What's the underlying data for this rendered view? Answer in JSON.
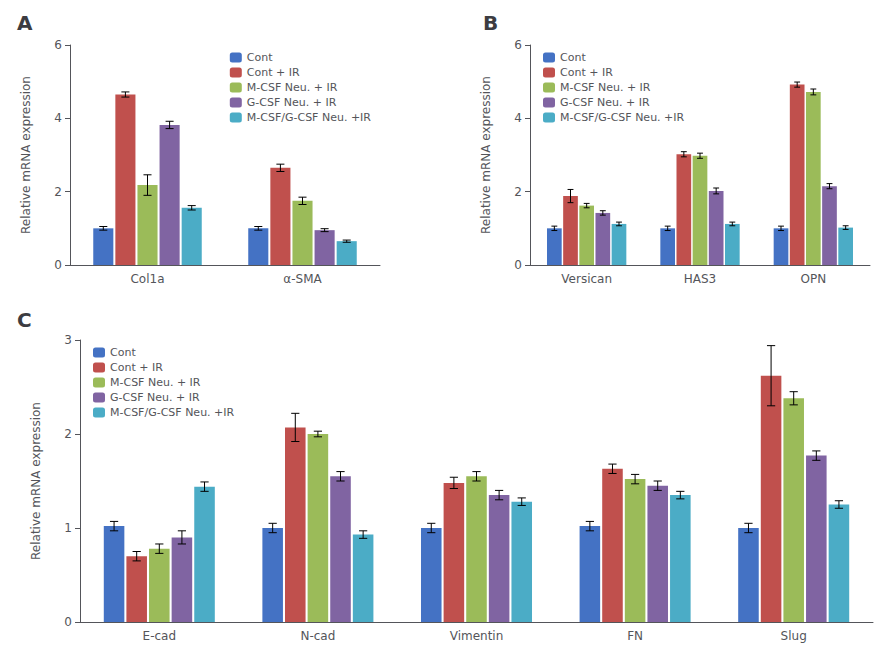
{
  "chart_data": [
    {
      "type": "bar",
      "title": "A",
      "categories": [
        "Col1a",
        "α-SMA"
      ],
      "ylabel": "Relative mRNA expression",
      "ylim": [
        0,
        6
      ],
      "yticks": [
        0,
        2,
        4,
        6
      ],
      "grid": false,
      "legend": "upper right",
      "series": [
        {
          "name": "Cont",
          "color": "#4472C4",
          "values": [
            1.0,
            1.0
          ],
          "errors": [
            0.05,
            0.05
          ]
        },
        {
          "name": "Cont + IR",
          "color": "#C0504D",
          "values": [
            4.65,
            2.65
          ],
          "errors": [
            0.07,
            0.1
          ]
        },
        {
          "name": "M-CSF Neu. + IR",
          "color": "#9BBB59",
          "values": [
            2.18,
            1.75
          ],
          "errors": [
            0.28,
            0.1
          ]
        },
        {
          "name": "G-CSF Neu. + IR",
          "color": "#8064A2",
          "values": [
            3.82,
            0.95
          ],
          "errors": [
            0.1,
            0.04
          ]
        },
        {
          "name": "M-CSF/G-CSF Neu. +IR",
          "color": "#4BACC6",
          "values": [
            1.56,
            0.65
          ],
          "errors": [
            0.06,
            0.03
          ]
        }
      ]
    },
    {
      "type": "bar",
      "title": "B",
      "categories": [
        "Versican",
        "HAS3",
        "OPN"
      ],
      "ylabel": "Relative mRNA expression",
      "ylim": [
        0,
        6
      ],
      "yticks": [
        0,
        2,
        4,
        6
      ],
      "grid": false,
      "legend": "upper left",
      "series": [
        {
          "name": "Cont",
          "color": "#4472C4",
          "values": [
            1.0,
            1.0,
            1.0
          ],
          "errors": [
            0.06,
            0.06,
            0.06
          ]
        },
        {
          "name": "Cont + IR",
          "color": "#C0504D",
          "values": [
            1.88,
            3.02,
            4.92
          ],
          "errors": [
            0.18,
            0.07,
            0.07
          ]
        },
        {
          "name": "M-CSF Neu. + IR",
          "color": "#9BBB59",
          "values": [
            1.62,
            2.98,
            4.72
          ],
          "errors": [
            0.06,
            0.07,
            0.08
          ]
        },
        {
          "name": "G-CSF Neu. + IR",
          "color": "#8064A2",
          "values": [
            1.42,
            2.02,
            2.15
          ],
          "errors": [
            0.06,
            0.08,
            0.07
          ]
        },
        {
          "name": "M-CSF/G-CSF Neu. +IR",
          "color": "#4BACC6",
          "values": [
            1.12,
            1.12,
            1.02
          ],
          "errors": [
            0.05,
            0.05,
            0.05
          ]
        }
      ]
    },
    {
      "type": "bar",
      "title": "C",
      "categories": [
        "E-cad",
        "N-cad",
        "Vimentin",
        "FN",
        "Slug"
      ],
      "ylabel": "Relative mRNA expression",
      "ylim": [
        0,
        3
      ],
      "yticks": [
        0,
        1,
        2,
        3
      ],
      "grid": false,
      "legend": "upper left",
      "series": [
        {
          "name": "Cont",
          "color": "#4472C4",
          "values": [
            1.02,
            1.0,
            1.0,
            1.02,
            1.0
          ],
          "errors": [
            0.05,
            0.05,
            0.05,
            0.05,
            0.05
          ]
        },
        {
          "name": "Cont + IR",
          "color": "#C0504D",
          "values": [
            0.7,
            2.07,
            1.48,
            1.63,
            2.62
          ],
          "errors": [
            0.05,
            0.15,
            0.06,
            0.05,
            0.32
          ]
        },
        {
          "name": "M-CSF Neu. + IR",
          "color": "#9BBB59",
          "values": [
            0.78,
            2.0,
            1.55,
            1.52,
            2.38
          ],
          "errors": [
            0.05,
            0.03,
            0.05,
            0.05,
            0.07
          ]
        },
        {
          "name": "G-CSF Neu. + IR",
          "color": "#8064A2",
          "values": [
            0.9,
            1.55,
            1.35,
            1.45,
            1.77
          ],
          "errors": [
            0.07,
            0.05,
            0.05,
            0.05,
            0.05
          ]
        },
        {
          "name": "M-CSF/G-CSF Neu. +IR",
          "color": "#4BACC6",
          "values": [
            1.44,
            0.93,
            1.28,
            1.35,
            1.25
          ],
          "errors": [
            0.05,
            0.04,
            0.04,
            0.04,
            0.04
          ]
        }
      ]
    }
  ]
}
